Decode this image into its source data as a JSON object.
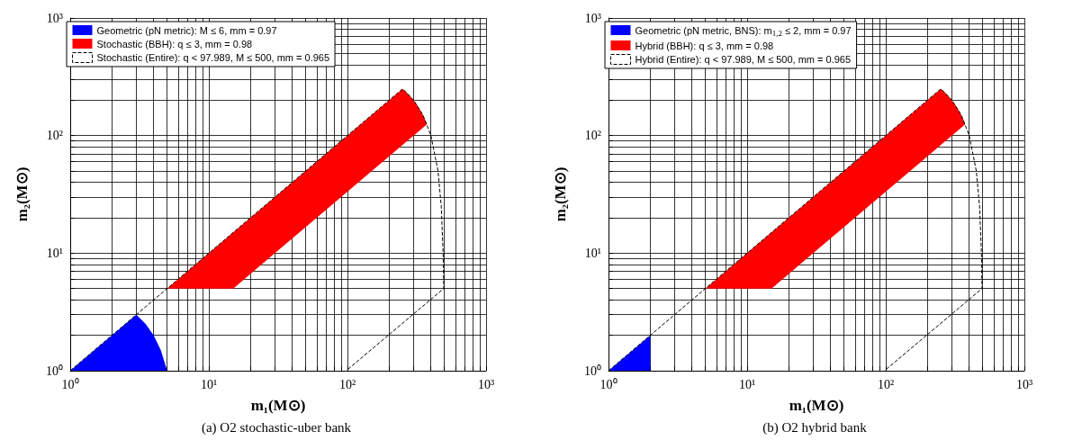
{
  "chart_data": [
    {
      "type": "area",
      "title": "(a) O2 stochastic-uber bank",
      "xlabel": "m₁(M⊙)",
      "ylabel": "m₂(M⊙)",
      "xlim": [
        1,
        1000
      ],
      "ylim": [
        1,
        1000
      ],
      "xticks": [
        {
          "value": 1,
          "label": "10⁰"
        },
        {
          "value": 2,
          "label": null
        },
        {
          "value": 3,
          "label": null
        },
        {
          "value": 4,
          "label": null
        },
        {
          "value": 5,
          "label": null
        },
        {
          "value": 6,
          "label": null
        },
        {
          "value": 7,
          "label": null
        },
        {
          "value": 8,
          "label": null
        },
        {
          "value": 9,
          "label": null
        },
        {
          "value": 10,
          "label": "10¹"
        },
        {
          "value": 20,
          "label": null
        },
        {
          "value": 30,
          "label": null
        },
        {
          "value": 40,
          "label": null
        },
        {
          "value": 50,
          "label": null
        },
        {
          "value": 60,
          "label": null
        },
        {
          "value": 70,
          "label": null
        },
        {
          "value": 80,
          "label": null
        },
        {
          "value": 90,
          "label": null
        },
        {
          "value": 100,
          "label": "10²"
        },
        {
          "value": 200,
          "label": null
        },
        {
          "value": 300,
          "label": null
        },
        {
          "value": 400,
          "label": null
        },
        {
          "value": 500,
          "label": null
        },
        {
          "value": 600,
          "label": null
        },
        {
          "value": 700,
          "label": null
        },
        {
          "value": 800,
          "label": null
        },
        {
          "value": 900,
          "label": null
        },
        {
          "value": 1000,
          "label": "10³"
        }
      ],
      "yticks": [
        {
          "value": 1,
          "label": "10⁰"
        },
        {
          "value": 2,
          "label": null
        },
        {
          "value": 3,
          "label": null
        },
        {
          "value": 4,
          "label": null
        },
        {
          "value": 5,
          "label": null
        },
        {
          "value": 6,
          "label": null
        },
        {
          "value": 7,
          "label": null
        },
        {
          "value": 8,
          "label": null
        },
        {
          "value": 9,
          "label": null
        },
        {
          "value": 10,
          "label": "10¹"
        },
        {
          "value": 20,
          "label": null
        },
        {
          "value": 30,
          "label": null
        },
        {
          "value": 40,
          "label": null
        },
        {
          "value": 50,
          "label": null
        },
        {
          "value": 60,
          "label": null
        },
        {
          "value": 70,
          "label": null
        },
        {
          "value": 80,
          "label": null
        },
        {
          "value": 90,
          "label": null
        },
        {
          "value": 100,
          "label": "10²"
        },
        {
          "value": 200,
          "label": null
        },
        {
          "value": 300,
          "label": null
        },
        {
          "value": 400,
          "label": null
        },
        {
          "value": 500,
          "label": null
        },
        {
          "value": 600,
          "label": null
        },
        {
          "value": 700,
          "label": null
        },
        {
          "value": 800,
          "label": null
        },
        {
          "value": 900,
          "label": null
        },
        {
          "value": 1000,
          "label": "10³"
        }
      ],
      "log": "xy",
      "grid": true,
      "legend": "top left",
      "series": [
        {
          "name": "Geometric (pN metric): M ≤ 6, mm = 0.97",
          "color": "#0000ff",
          "x": [
            1,
            2,
            3,
            3.5,
            4,
            4.5,
            5
          ],
          "values": [
            1,
            2,
            3,
            2.5,
            2,
            1.5,
            1
          ]
        },
        {
          "name": "Stochastic (BBH): q ≤ 3, mm = 0.98",
          "color": "#ff0000",
          "x": [
            5,
            15,
            30,
            100,
            250,
            275,
            300,
            325,
            350,
            375,
            350,
            325,
            300,
            250,
            100,
            30,
            15
          ],
          "values": [
            5,
            15,
            30,
            100,
            250,
            225,
            200,
            175,
            150,
            125,
            116.7,
            108.3,
            100,
            83.3,
            33.3,
            10,
            5
          ]
        },
        {
          "name": "Stochastic (Entire): q < 97.989, M ≤ 500, mm = 0.965",
          "type": "line",
          "line_style": "dashed",
          "color": "#000000",
          "x": [
            1,
            250,
            300,
            350,
            400,
            450,
            475,
            490,
            495,
            97.989
          ],
          "values": [
            1,
            250,
            200,
            150,
            100,
            50,
            25,
            10,
            5,
            1
          ]
        }
      ]
    },
    {
      "type": "area",
      "title": "(b) O2 hybrid bank",
      "xlabel": "m₁(M⊙)",
      "ylabel": "m₂(M⊙)",
      "xlim": [
        1,
        1000
      ],
      "ylim": [
        1,
        1000
      ],
      "xticks": [
        {
          "value": 1,
          "label": "10⁰"
        },
        {
          "value": 2,
          "label": null
        },
        {
          "value": 3,
          "label": null
        },
        {
          "value": 4,
          "label": null
        },
        {
          "value": 5,
          "label": null
        },
        {
          "value": 6,
          "label": null
        },
        {
          "value": 7,
          "label": null
        },
        {
          "value": 8,
          "label": null
        },
        {
          "value": 9,
          "label": null
        },
        {
          "value": 10,
          "label": "10¹"
        },
        {
          "value": 20,
          "label": null
        },
        {
          "value": 30,
          "label": null
        },
        {
          "value": 40,
          "label": null
        },
        {
          "value": 50,
          "label": null
        },
        {
          "value": 60,
          "label": null
        },
        {
          "value": 70,
          "label": null
        },
        {
          "value": 80,
          "label": null
        },
        {
          "value": 90,
          "label": null
        },
        {
          "value": 100,
          "label": "10²"
        },
        {
          "value": 200,
          "label": null
        },
        {
          "value": 300,
          "label": null
        },
        {
          "value": 400,
          "label": null
        },
        {
          "value": 500,
          "label": null
        },
        {
          "value": 600,
          "label": null
        },
        {
          "value": 700,
          "label": null
        },
        {
          "value": 800,
          "label": null
        },
        {
          "value": 900,
          "label": null
        },
        {
          "value": 1000,
          "label": "10³"
        }
      ],
      "yticks": [
        {
          "value": 1,
          "label": "10⁰"
        },
        {
          "value": 2,
          "label": null
        },
        {
          "value": 3,
          "label": null
        },
        {
          "value": 4,
          "label": null
        },
        {
          "value": 5,
          "label": null
        },
        {
          "value": 6,
          "label": null
        },
        {
          "value": 7,
          "label": null
        },
        {
          "value": 8,
          "label": null
        },
        {
          "value": 9,
          "label": null
        },
        {
          "value": 10,
          "label": "10¹"
        },
        {
          "value": 20,
          "label": null
        },
        {
          "value": 30,
          "label": null
        },
        {
          "value": 40,
          "label": null
        },
        {
          "value": 50,
          "label": null
        },
        {
          "value": 60,
          "label": null
        },
        {
          "value": 70,
          "label": null
        },
        {
          "value": 80,
          "label": null
        },
        {
          "value": 90,
          "label": null
        },
        {
          "value": 100,
          "label": "10²"
        },
        {
          "value": 200,
          "label": null
        },
        {
          "value": 300,
          "label": null
        },
        {
          "value": 400,
          "label": null
        },
        {
          "value": 500,
          "label": null
        },
        {
          "value": 600,
          "label": null
        },
        {
          "value": 700,
          "label": null
        },
        {
          "value": 800,
          "label": null
        },
        {
          "value": 900,
          "label": null
        },
        {
          "value": 1000,
          "label": "10³"
        }
      ],
      "log": "xy",
      "grid": true,
      "legend": "top left",
      "series": [
        {
          "name": "Geometric (pN metric, BNS): m$_{1,2}$ ≤ 2, mm = 0.97",
          "color": "#0000ff",
          "x": [
            1,
            2,
            2
          ],
          "values": [
            1,
            2,
            1
          ]
        },
        {
          "name": "Hybrid (BBH): q ≤ 3, mm = 0.98",
          "color": "#ff0000",
          "x": [
            5,
            15,
            30,
            100,
            250,
            275,
            300,
            325,
            350,
            375,
            350,
            325,
            300,
            250,
            100,
            30,
            15
          ],
          "values": [
            5,
            15,
            30,
            100,
            250,
            225,
            200,
            175,
            150,
            125,
            116.7,
            108.3,
            100,
            83.3,
            33.3,
            10,
            5
          ]
        },
        {
          "name": "Hybrid (Entire): q < 97.989, M ≤ 500, mm = 0.965",
          "type": "line",
          "line_style": "dashed",
          "color": "#000000",
          "x": [
            1,
            250,
            300,
            350,
            400,
            450,
            475,
            490,
            495,
            97.989
          ],
          "values": [
            1,
            250,
            200,
            150,
            100,
            50,
            25,
            10,
            5,
            1
          ]
        }
      ]
    }
  ]
}
